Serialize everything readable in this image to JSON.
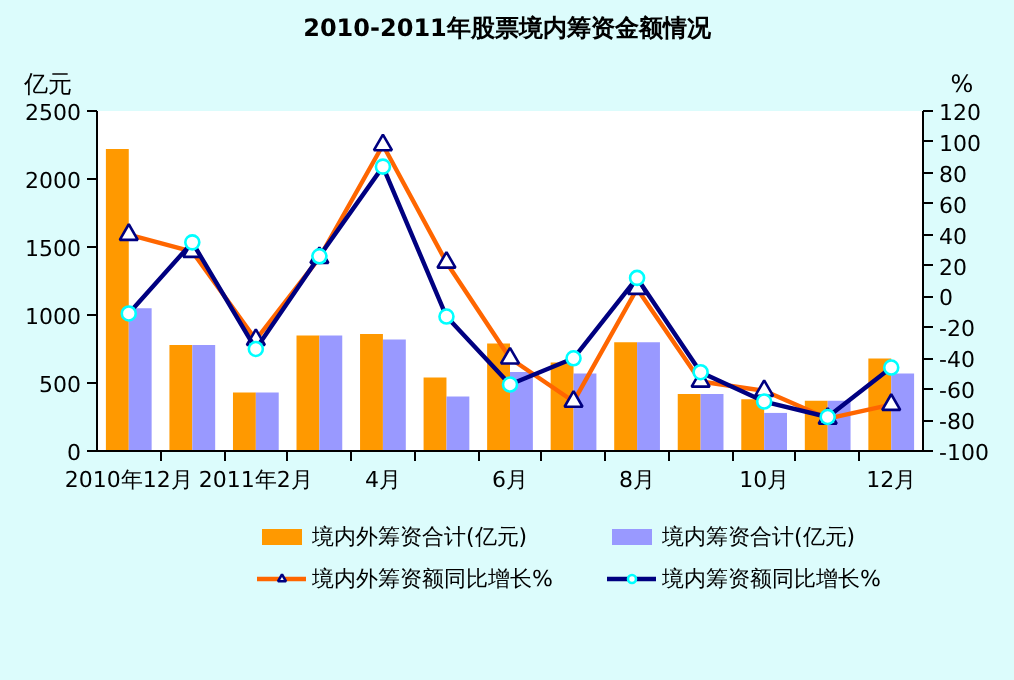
{
  "chart_data": {
    "type": "bar",
    "title": "2010-2011年股票境内筹资金额情况",
    "ylabel": "亿元",
    "y2label": "%",
    "categories": [
      "2010年12月",
      null,
      "2011年2月",
      null,
      "4月",
      null,
      "6月",
      null,
      "8月",
      null,
      "10月",
      null,
      "12月"
    ],
    "series": [
      {
        "name": "境内外筹资合计(亿元)",
        "color": "#ff9900",
        "values": [
          2220,
          780,
          430,
          850,
          860,
          540,
          790,
          650,
          800,
          420,
          380,
          370,
          680
        ]
      },
      {
        "name": "境内筹资合计(亿元)",
        "color": "#9999ff",
        "values": [
          1050,
          780,
          430,
          850,
          820,
          400,
          580,
          570,
          800,
          420,
          280,
          370,
          570
        ]
      },
      {
        "name": "境内外筹资额同比增长%",
        "type": "line",
        "axis": "y2",
        "color": "#ff6600",
        "marker": "triangle",
        "values": [
          40,
          29,
          -28,
          25,
          98,
          22,
          -40,
          -68,
          5,
          -55,
          -61,
          -79,
          -70
        ]
      },
      {
        "name": "境内筹资额同比增长%",
        "type": "line",
        "axis": "y2",
        "color": "#000080",
        "marker": "circle",
        "values": [
          -11,
          35,
          -34,
          26,
          84,
          -13,
          -57,
          -40,
          12,
          -49,
          -68,
          -78,
          -46
        ]
      }
    ],
    "ylim": [
      0,
      2500
    ],
    "yticks": [
      0,
      500,
      1000,
      1500,
      2000,
      2500
    ],
    "y2lim": [
      -100,
      120
    ],
    "y2ticks": [
      -100,
      -80,
      -60,
      -40,
      -20,
      0,
      20,
      40,
      60,
      80,
      100,
      120
    ],
    "legend": "bottom",
    "grid": false
  }
}
